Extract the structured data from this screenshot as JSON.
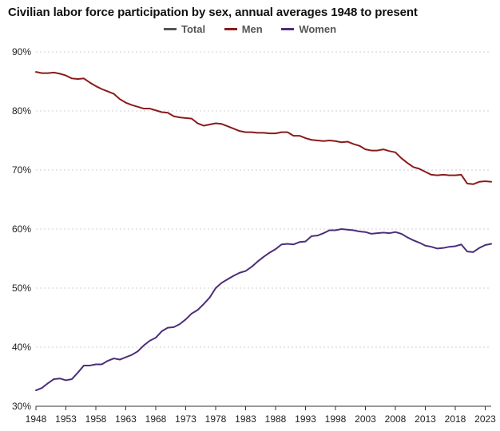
{
  "chart_data": {
    "type": "line",
    "title": "Civilian labor force participation by sex, annual averages 1948 to present",
    "xlabel": "",
    "ylabel": "",
    "ylim": [
      30,
      90
    ],
    "xlim": [
      1948,
      2024
    ],
    "y_ticks": [
      30,
      40,
      50,
      60,
      70,
      80,
      90
    ],
    "y_tick_labels": [
      "30%",
      "40%",
      "50%",
      "60%",
      "70%",
      "80%",
      "90%"
    ],
    "x_ticks": [
      1948,
      1953,
      1958,
      1963,
      1968,
      1973,
      1978,
      1983,
      1988,
      1993,
      1998,
      2003,
      2008,
      2013,
      2018,
      2023
    ],
    "x_tick_labels": [
      "1948",
      "1953",
      "1958",
      "1963",
      "1968",
      "1973",
      "1978",
      "1983",
      "1988",
      "1993",
      "1998",
      "2003",
      "2008",
      "2013",
      "2018",
      "2023"
    ],
    "grid": "horizontal-dotted",
    "legend_position": "top-center",
    "series": [
      {
        "name": "Total",
        "color": "#555555",
        "x": [],
        "values": []
      },
      {
        "name": "Men",
        "color": "#8b1a1a",
        "x": [
          1948,
          1949,
          1950,
          1951,
          1952,
          1953,
          1954,
          1955,
          1956,
          1957,
          1958,
          1959,
          1960,
          1961,
          1962,
          1963,
          1964,
          1965,
          1966,
          1967,
          1968,
          1969,
          1970,
          1971,
          1972,
          1973,
          1974,
          1975,
          1976,
          1977,
          1978,
          1979,
          1980,
          1981,
          1982,
          1983,
          1984,
          1985,
          1986,
          1987,
          1988,
          1989,
          1990,
          1991,
          1992,
          1993,
          1994,
          1995,
          1996,
          1997,
          1998,
          1999,
          2000,
          2001,
          2002,
          2003,
          2004,
          2005,
          2006,
          2007,
          2008,
          2009,
          2010,
          2011,
          2012,
          2013,
          2014,
          2015,
          2016,
          2017,
          2018,
          2019,
          2020,
          2021,
          2022,
          2023,
          2024
        ],
        "values": [
          86.6,
          86.4,
          86.4,
          86.5,
          86.3,
          86.0,
          85.5,
          85.4,
          85.5,
          84.8,
          84.2,
          83.7,
          83.3,
          82.9,
          82.0,
          81.4,
          81.0,
          80.7,
          80.4,
          80.4,
          80.1,
          79.8,
          79.7,
          79.1,
          78.9,
          78.8,
          78.7,
          77.9,
          77.5,
          77.7,
          77.9,
          77.8,
          77.4,
          77.0,
          76.6,
          76.4,
          76.4,
          76.3,
          76.3,
          76.2,
          76.2,
          76.4,
          76.4,
          75.8,
          75.8,
          75.4,
          75.1,
          75.0,
          74.9,
          75.0,
          74.9,
          74.7,
          74.8,
          74.4,
          74.1,
          73.5,
          73.3,
          73.3,
          73.5,
          73.2,
          73.0,
          72.0,
          71.2,
          70.5,
          70.2,
          69.7,
          69.2,
          69.1,
          69.2,
          69.1,
          69.1,
          69.2,
          67.7,
          67.6,
          68.0,
          68.1,
          68.0
        ]
      },
      {
        "name": "Women",
        "color": "#4b2e7a",
        "x": [
          1948,
          1949,
          1950,
          1951,
          1952,
          1953,
          1954,
          1955,
          1956,
          1957,
          1958,
          1959,
          1960,
          1961,
          1962,
          1963,
          1964,
          1965,
          1966,
          1967,
          1968,
          1969,
          1970,
          1971,
          1972,
          1973,
          1974,
          1975,
          1976,
          1977,
          1978,
          1979,
          1980,
          1981,
          1982,
          1983,
          1984,
          1985,
          1986,
          1987,
          1988,
          1989,
          1990,
          1991,
          1992,
          1993,
          1994,
          1995,
          1996,
          1997,
          1998,
          1999,
          2000,
          2001,
          2002,
          2003,
          2004,
          2005,
          2006,
          2007,
          2008,
          2009,
          2010,
          2011,
          2012,
          2013,
          2014,
          2015,
          2016,
          2017,
          2018,
          2019,
          2020,
          2021,
          2022,
          2023,
          2024
        ],
        "values": [
          32.7,
          33.1,
          33.9,
          34.6,
          34.7,
          34.4,
          34.6,
          35.7,
          36.9,
          36.9,
          37.1,
          37.1,
          37.7,
          38.1,
          37.9,
          38.3,
          38.7,
          39.3,
          40.3,
          41.1,
          41.6,
          42.7,
          43.3,
          43.4,
          43.9,
          44.7,
          45.7,
          46.3,
          47.3,
          48.4,
          50.0,
          50.9,
          51.5,
          52.1,
          52.6,
          52.9,
          53.6,
          54.5,
          55.3,
          56.0,
          56.6,
          57.4,
          57.5,
          57.4,
          57.8,
          57.9,
          58.8,
          58.9,
          59.3,
          59.8,
          59.8,
          60.0,
          59.9,
          59.8,
          59.6,
          59.5,
          59.2,
          59.3,
          59.4,
          59.3,
          59.5,
          59.2,
          58.6,
          58.1,
          57.7,
          57.2,
          57.0,
          56.7,
          56.8,
          57.0,
          57.1,
          57.4,
          56.2,
          56.1,
          56.8,
          57.3,
          57.5
        ]
      }
    ]
  }
}
